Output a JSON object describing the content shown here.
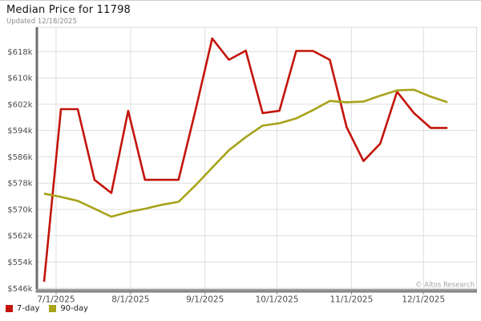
{
  "header": {
    "title": "Median Price for 11798",
    "subtitle": "Updated 12/18/2025"
  },
  "footer": {
    "copyright": "© Altos Research"
  },
  "chart_data": {
    "type": "line",
    "title": "Median Price for 11798",
    "subtitle": "Updated 12/18/2025",
    "unit": "USD thousands",
    "grid": true,
    "legend_position": "bottom-left",
    "y_axis": {
      "range_k": [
        545,
        625
      ],
      "ticks": [
        {
          "value": 618,
          "label": "$618k"
        },
        {
          "value": 610,
          "label": "$610k"
        },
        {
          "value": 602,
          "label": "$602k"
        },
        {
          "value": 594,
          "label": "$594k"
        },
        {
          "value": 586,
          "label": "$586k"
        },
        {
          "value": 578,
          "label": "$578k"
        },
        {
          "value": 570,
          "label": "$570k"
        },
        {
          "value": 562,
          "label": "$562k"
        },
        {
          "value": 554,
          "label": "$554k"
        },
        {
          "value": 546,
          "label": "$546k"
        }
      ]
    },
    "x_axis": {
      "ticks": [
        {
          "date": "2025-07-01",
          "label": "7/1/2025"
        },
        {
          "date": "2025-08-01",
          "label": "8/1/2025"
        },
        {
          "date": "2025-09-01",
          "label": "9/1/2025"
        },
        {
          "date": "2025-10-01",
          "label": "10/1/2025"
        },
        {
          "date": "2025-11-01",
          "label": "11/1/2025"
        },
        {
          "date": "2025-12-01",
          "label": "12/1/2025"
        }
      ]
    },
    "dates": [
      "2025-06-26",
      "2025-07-03",
      "2025-07-10",
      "2025-07-17",
      "2025-07-24",
      "2025-07-31",
      "2025-08-07",
      "2025-08-14",
      "2025-08-21",
      "2025-08-28",
      "2025-09-04",
      "2025-09-11",
      "2025-09-18",
      "2025-09-25",
      "2025-10-02",
      "2025-10-09",
      "2025-10-16",
      "2025-10-23",
      "2025-10-30",
      "2025-11-06",
      "2025-11-13",
      "2025-11-20",
      "2025-11-27",
      "2025-12-04",
      "2025-12-11"
    ],
    "series": [
      {
        "name": "7-day",
        "color": "#c3140b",
        "values_k": [
          548,
          600.5,
          600.5,
          579,
          575,
          600,
          579,
          579,
          579,
          600,
          622,
          615.5,
          618.3,
          599.3,
          600,
          618.2,
          618.2,
          615.5,
          595,
          584.7,
          590,
          605.8,
          599.3,
          594.8,
          594.8
        ]
      },
      {
        "name": "90-day",
        "color": "#a7a31b",
        "values_k": [
          574.8,
          573.8,
          572.6,
          570.2,
          567.8,
          569.2,
          570.2,
          571.4,
          572.3,
          577.3,
          582.7,
          588,
          592,
          595.5,
          596.2,
          597.7,
          600.2,
          603,
          602.6,
          602.8,
          604.6,
          606.2,
          606.4,
          604.3,
          602.6
        ]
      }
    ]
  }
}
